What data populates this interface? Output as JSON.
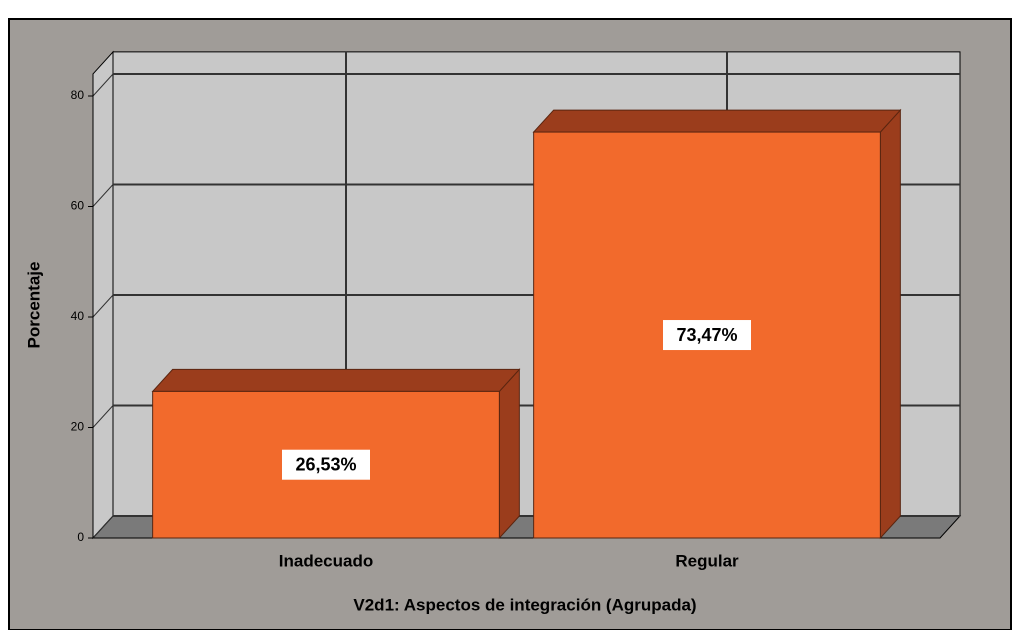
{
  "chart_data": {
    "type": "bar3d",
    "x_label": "V2d1: Aspectos de integración (Agrupada)",
    "y_label": "Porcentaje",
    "categories": [
      "Inadecuado",
      "Regular"
    ],
    "values": [
      26.53,
      73.47
    ],
    "value_labels": [
      "26,53%",
      "73,47%"
    ],
    "color": "#f26a2c",
    "ylim": [
      0,
      84
    ],
    "yticks": [
      0,
      20,
      40,
      60,
      80
    ],
    "grid": true
  }
}
